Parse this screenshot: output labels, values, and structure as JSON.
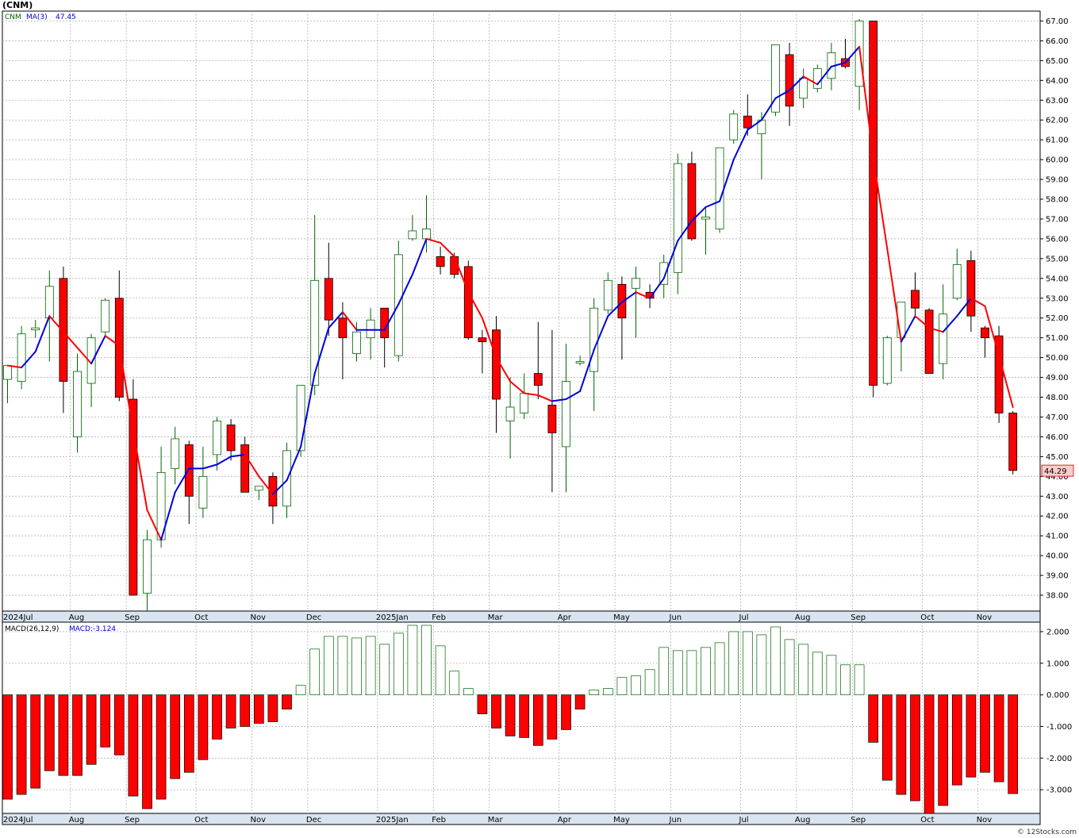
{
  "symbol": "(CNM)",
  "credit": "© 12Stocks.com",
  "price_legend": {
    "ticker": "CNM",
    "ma_label": "MA(3)",
    "ma_value": "47.45"
  },
  "macd_legend": {
    "label": "MACD(26,12,9)",
    "value_label": "MACD:-3.124"
  },
  "last_price_tag": "44.29",
  "colors": {
    "up": "#006400",
    "down": "#ff0000",
    "ma_up": "#0000dd",
    "ma_down": "#ff0000",
    "grid": "#b0b0b0",
    "axis_strip": "#d8e4f0"
  },
  "chart_data": [
    {
      "type": "candlestick",
      "title": "(CNM)",
      "period": "weekly",
      "ylim": [
        37.2,
        67.5
      ],
      "y_ticks": [
        "38.00",
        "39.00",
        "40.00",
        "41.00",
        "42.00",
        "43.00",
        "44.00",
        "45.00",
        "46.00",
        "47.00",
        "48.00",
        "49.00",
        "50.00",
        "51.00",
        "52.00",
        "53.00",
        "54.00",
        "55.00",
        "56.00",
        "57.00",
        "58.00",
        "59.00",
        "60.00",
        "61.00",
        "62.00",
        "63.00",
        "64.00",
        "65.00",
        "66.00",
        "67.00"
      ],
      "x_month_labels": [
        {
          "label": "2024Jul",
          "week": 0
        },
        {
          "label": "Aug",
          "week": 5
        },
        {
          "label": "Sep",
          "week": 9
        },
        {
          "label": "Oct",
          "week": 14
        },
        {
          "label": "Nov",
          "week": 18
        },
        {
          "label": "Dec",
          "week": 22
        },
        {
          "label": "2025Jan",
          "week": 27
        },
        {
          "label": "Feb",
          "week": 31
        },
        {
          "label": "Mar",
          "week": 35
        },
        {
          "label": "Apr",
          "week": 40
        },
        {
          "label": "May",
          "week": 44
        },
        {
          "label": "Jun",
          "week": 48
        },
        {
          "label": "Jul",
          "week": 53
        },
        {
          "label": "Aug",
          "week": 57
        },
        {
          "label": "Sep",
          "week": 61
        },
        {
          "label": "Oct",
          "week": 66
        },
        {
          "label": "Nov",
          "week": 70
        }
      ],
      "candles": [
        {
          "o": 48.9,
          "h": 49.6,
          "l": 47.7,
          "c": 49.6
        },
        {
          "o": 48.8,
          "h": 51.6,
          "l": 48.4,
          "c": 51.2
        },
        {
          "o": 51.4,
          "h": 51.9,
          "l": 51.0,
          "c": 51.5
        },
        {
          "o": 52.0,
          "h": 54.4,
          "l": 49.8,
          "c": 53.6
        },
        {
          "o": 54.0,
          "h": 54.6,
          "l": 47.2,
          "c": 48.8
        },
        {
          "o": 46.0,
          "h": 50.2,
          "l": 45.2,
          "c": 49.3
        },
        {
          "o": 48.7,
          "h": 51.2,
          "l": 47.5,
          "c": 51.0
        },
        {
          "o": 51.3,
          "h": 53.0,
          "l": 51.1,
          "c": 52.9
        },
        {
          "o": 53.0,
          "h": 54.4,
          "l": 47.8,
          "c": 48.0
        },
        {
          "o": 47.9,
          "h": 48.9,
          "l": 38.0,
          "c": 38.0
        },
        {
          "o": 38.1,
          "h": 41.3,
          "l": 37.2,
          "c": 40.8
        },
        {
          "o": 40.8,
          "h": 45.5,
          "l": 40.4,
          "c": 44.2
        },
        {
          "o": 44.4,
          "h": 46.5,
          "l": 43.6,
          "c": 45.9
        },
        {
          "o": 45.6,
          "h": 45.8,
          "l": 41.6,
          "c": 43.0
        },
        {
          "o": 42.4,
          "h": 45.5,
          "l": 41.9,
          "c": 44.0
        },
        {
          "o": 45.1,
          "h": 47.0,
          "l": 44.3,
          "c": 46.8
        },
        {
          "o": 46.6,
          "h": 46.9,
          "l": 44.8,
          "c": 45.3
        },
        {
          "o": 45.6,
          "h": 46.0,
          "l": 43.2,
          "c": 43.2
        },
        {
          "o": 43.3,
          "h": 43.5,
          "l": 42.8,
          "c": 43.5
        },
        {
          "o": 44.0,
          "h": 44.2,
          "l": 41.6,
          "c": 42.5
        },
        {
          "o": 42.5,
          "h": 45.7,
          "l": 41.9,
          "c": 45.3
        },
        {
          "o": 45.3,
          "h": 48.6,
          "l": 45.0,
          "c": 48.6
        },
        {
          "o": 48.6,
          "h": 57.2,
          "l": 48.1,
          "c": 53.9
        },
        {
          "o": 54.0,
          "h": 55.8,
          "l": 51.1,
          "c": 51.9
        },
        {
          "o": 52.0,
          "h": 52.8,
          "l": 48.9,
          "c": 51.0
        },
        {
          "o": 50.2,
          "h": 51.8,
          "l": 49.8,
          "c": 51.3
        },
        {
          "o": 51.0,
          "h": 52.5,
          "l": 49.9,
          "c": 51.9
        },
        {
          "o": 52.5,
          "h": 52.5,
          "l": 49.5,
          "c": 51.0
        },
        {
          "o": 50.1,
          "h": 55.9,
          "l": 49.8,
          "c": 55.2
        },
        {
          "o": 56.0,
          "h": 57.2,
          "l": 55.9,
          "c": 56.4
        },
        {
          "o": 56.0,
          "h": 58.2,
          "l": 55.3,
          "c": 56.5
        },
        {
          "o": 55.1,
          "h": 55.6,
          "l": 54.2,
          "c": 54.6
        },
        {
          "o": 55.1,
          "h": 55.3,
          "l": 54.0,
          "c": 54.2
        },
        {
          "o": 54.6,
          "h": 54.9,
          "l": 50.9,
          "c": 51.0
        },
        {
          "o": 51.0,
          "h": 51.4,
          "l": 49.2,
          "c": 50.8
        },
        {
          "o": 51.4,
          "h": 52.1,
          "l": 46.2,
          "c": 47.9
        },
        {
          "o": 46.8,
          "h": 49.0,
          "l": 44.9,
          "c": 47.5
        },
        {
          "o": 47.2,
          "h": 49.2,
          "l": 46.9,
          "c": 48.2
        },
        {
          "o": 49.2,
          "h": 51.8,
          "l": 47.9,
          "c": 48.6
        },
        {
          "o": 47.6,
          "h": 51.4,
          "l": 43.2,
          "c": 46.2
        },
        {
          "o": 45.5,
          "h": 50.7,
          "l": 43.2,
          "c": 48.8
        },
        {
          "o": 49.8,
          "h": 50.1,
          "l": 49.6,
          "c": 49.8
        },
        {
          "o": 49.3,
          "h": 53.0,
          "l": 47.3,
          "c": 52.5
        },
        {
          "o": 52.4,
          "h": 54.3,
          "l": 52.2,
          "c": 53.9
        },
        {
          "o": 53.7,
          "h": 54.1,
          "l": 49.9,
          "c": 52.0
        },
        {
          "o": 53.5,
          "h": 54.6,
          "l": 51.0,
          "c": 54.0
        },
        {
          "o": 53.3,
          "h": 53.7,
          "l": 52.5,
          "c": 53.0
        },
        {
          "o": 53.7,
          "h": 55.2,
          "l": 53.0,
          "c": 54.8
        },
        {
          "o": 54.3,
          "h": 60.3,
          "l": 53.2,
          "c": 59.8
        },
        {
          "o": 59.8,
          "h": 60.4,
          "l": 55.9,
          "c": 56.0
        },
        {
          "o": 57.0,
          "h": 57.6,
          "l": 55.2,
          "c": 57.1
        },
        {
          "o": 56.5,
          "h": 60.6,
          "l": 56.3,
          "c": 60.6
        },
        {
          "o": 61.0,
          "h": 62.5,
          "l": 60.8,
          "c": 62.3
        },
        {
          "o": 62.2,
          "h": 63.3,
          "l": 61.2,
          "c": 61.6
        },
        {
          "o": 61.3,
          "h": 62.4,
          "l": 59.0,
          "c": 62.0
        },
        {
          "o": 62.4,
          "h": 65.8,
          "l": 62.2,
          "c": 65.8
        },
        {
          "o": 65.3,
          "h": 65.9,
          "l": 61.7,
          "c": 62.7
        },
        {
          "o": 63.1,
          "h": 64.6,
          "l": 62.6,
          "c": 64.1
        },
        {
          "o": 63.6,
          "h": 64.8,
          "l": 63.4,
          "c": 64.6
        },
        {
          "o": 64.1,
          "h": 65.9,
          "l": 63.5,
          "c": 65.4
        },
        {
          "o": 65.1,
          "h": 66.1,
          "l": 64.6,
          "c": 64.7
        },
        {
          "o": 63.7,
          "h": 67.1,
          "l": 62.5,
          "c": 67.0
        },
        {
          "o": 67.0,
          "h": 67.0,
          "l": 48.0,
          "c": 48.6
        },
        {
          "o": 48.7,
          "h": 51.1,
          "l": 48.6,
          "c": 51.0
        },
        {
          "o": 51.0,
          "h": 52.8,
          "l": 49.3,
          "c": 52.8
        },
        {
          "o": 53.4,
          "h": 54.3,
          "l": 52.0,
          "c": 52.5
        },
        {
          "o": 52.4,
          "h": 52.5,
          "l": 49.2,
          "c": 49.2
        },
        {
          "o": 49.7,
          "h": 53.7,
          "l": 48.9,
          "c": 52.2
        },
        {
          "o": 53.0,
          "h": 55.5,
          "l": 52.9,
          "c": 54.7
        },
        {
          "o": 54.9,
          "h": 55.4,
          "l": 51.3,
          "c": 52.1
        },
        {
          "o": 51.5,
          "h": 51.6,
          "l": 50.0,
          "c": 51.0
        },
        {
          "o": 51.1,
          "h": 51.6,
          "l": 46.7,
          "c": 47.2
        },
        {
          "o": 47.2,
          "h": 47.3,
          "l": 44.1,
          "c": 44.3
        }
      ],
      "ma3": [
        49.6,
        49.5,
        50.3,
        52.1,
        51.3,
        50.5,
        49.7,
        51.1,
        50.6,
        46.3,
        42.3,
        40.8,
        43.2,
        44.4,
        44.4,
        44.6,
        45.0,
        45.1,
        44.0,
        43.1,
        43.8,
        45.5,
        49.2,
        51.5,
        52.3,
        51.4,
        51.4,
        51.4,
        52.7,
        54.2,
        56.0,
        55.8,
        55.1,
        53.3,
        52.0,
        50.0,
        48.8,
        48.2,
        48.1,
        47.8,
        47.9,
        48.3,
        50.4,
        52.1,
        52.8,
        53.3,
        53.0,
        54.0,
        55.9,
        56.9,
        57.6,
        57.9,
        60.0,
        61.5,
        62.0,
        63.1,
        63.5,
        64.2,
        63.8,
        64.7,
        64.9,
        65.7,
        60.1,
        55.5,
        50.8,
        52.1,
        51.5,
        51.3,
        52.1,
        53.0,
        52.6,
        50.1,
        47.5
      ]
    },
    {
      "type": "bar",
      "title": "MACD(26,12,9)",
      "ylim": [
        -3.75,
        2.3
      ],
      "y_ticks": [
        "-3.000",
        "-2.000",
        "-1.000",
        "0.000",
        "1.000",
        "2.000"
      ],
      "values": [
        -3.3,
        -3.15,
        -2.95,
        -2.4,
        -2.55,
        -2.55,
        -2.2,
        -1.65,
        -1.9,
        -3.2,
        -3.6,
        -3.3,
        -2.65,
        -2.45,
        -2.05,
        -1.4,
        -1.05,
        -1.0,
        -0.9,
        -0.85,
        -0.45,
        0.3,
        1.45,
        1.85,
        1.85,
        1.8,
        1.85,
        1.6,
        1.95,
        2.2,
        2.2,
        1.55,
        0.75,
        0.2,
        -0.6,
        -1.05,
        -1.3,
        -1.35,
        -1.6,
        -1.4,
        -1.1,
        -0.45,
        0.15,
        0.2,
        0.55,
        0.6,
        0.8,
        1.5,
        1.4,
        1.4,
        1.5,
        1.65,
        2.0,
        2.0,
        1.9,
        2.15,
        1.75,
        1.6,
        1.35,
        1.25,
        0.95,
        0.95,
        -1.5,
        -2.7,
        -3.15,
        -3.35,
        -3.75,
        -3.5,
        -2.85,
        -2.6,
        -2.45,
        -2.75,
        -3.124
      ]
    }
  ]
}
